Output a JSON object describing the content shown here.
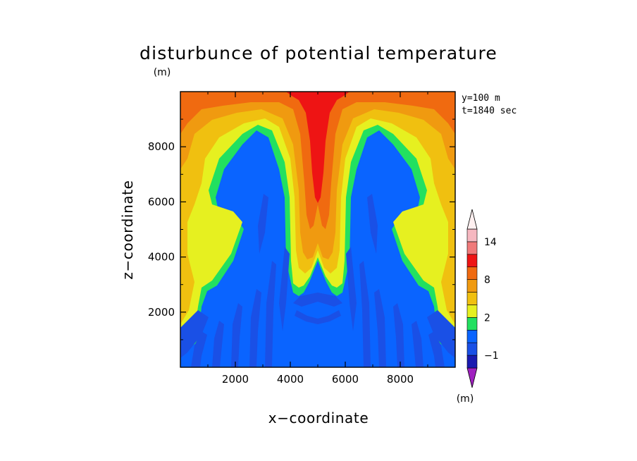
{
  "chart_data": {
    "type": "heatmap",
    "title": "disturbunce of potential temperature",
    "units_label": "(m)",
    "xlabel": "x−coordinate",
    "ylabel": "z−coordinate",
    "xlim": [
      0,
      10000
    ],
    "ylim": [
      0,
      10000
    ],
    "x_ticks": [
      2000,
      4000,
      6000,
      8000
    ],
    "y_ticks": [
      2000,
      4000,
      6000,
      8000
    ],
    "x_tick_labels": [
      "2000",
      "4000",
      "6000",
      "8000"
    ],
    "y_tick_labels": [
      "2000",
      "4000",
      "6000",
      "8000"
    ],
    "annotations": [
      "y=100 m",
      "t=1840 sec"
    ],
    "colorbar": {
      "units_label": "(m)",
      "levels": [
        -1,
        2,
        8,
        14
      ],
      "level_labels": [
        "−1",
        "2",
        "8",
        "14"
      ],
      "colors": [
        "#a020c0",
        "#1a1ab0",
        "#1a50e6",
        "#0a64ff",
        "#22e060",
        "#e6f020",
        "#f0c010",
        "#f09a10",
        "#f06a10",
        "#ee1414",
        "#f07a7a",
        "#f6b8c0",
        "#fcd8dc"
      ]
    },
    "fields": {
      "background": "#0a64ff",
      "deep_negative": "#1a50e6",
      "contour_colors": [
        "#22e060",
        "#e6f020",
        "#f0c010",
        "#f09a10",
        "#f06a10",
        "#ee1414"
      ]
    }
  }
}
